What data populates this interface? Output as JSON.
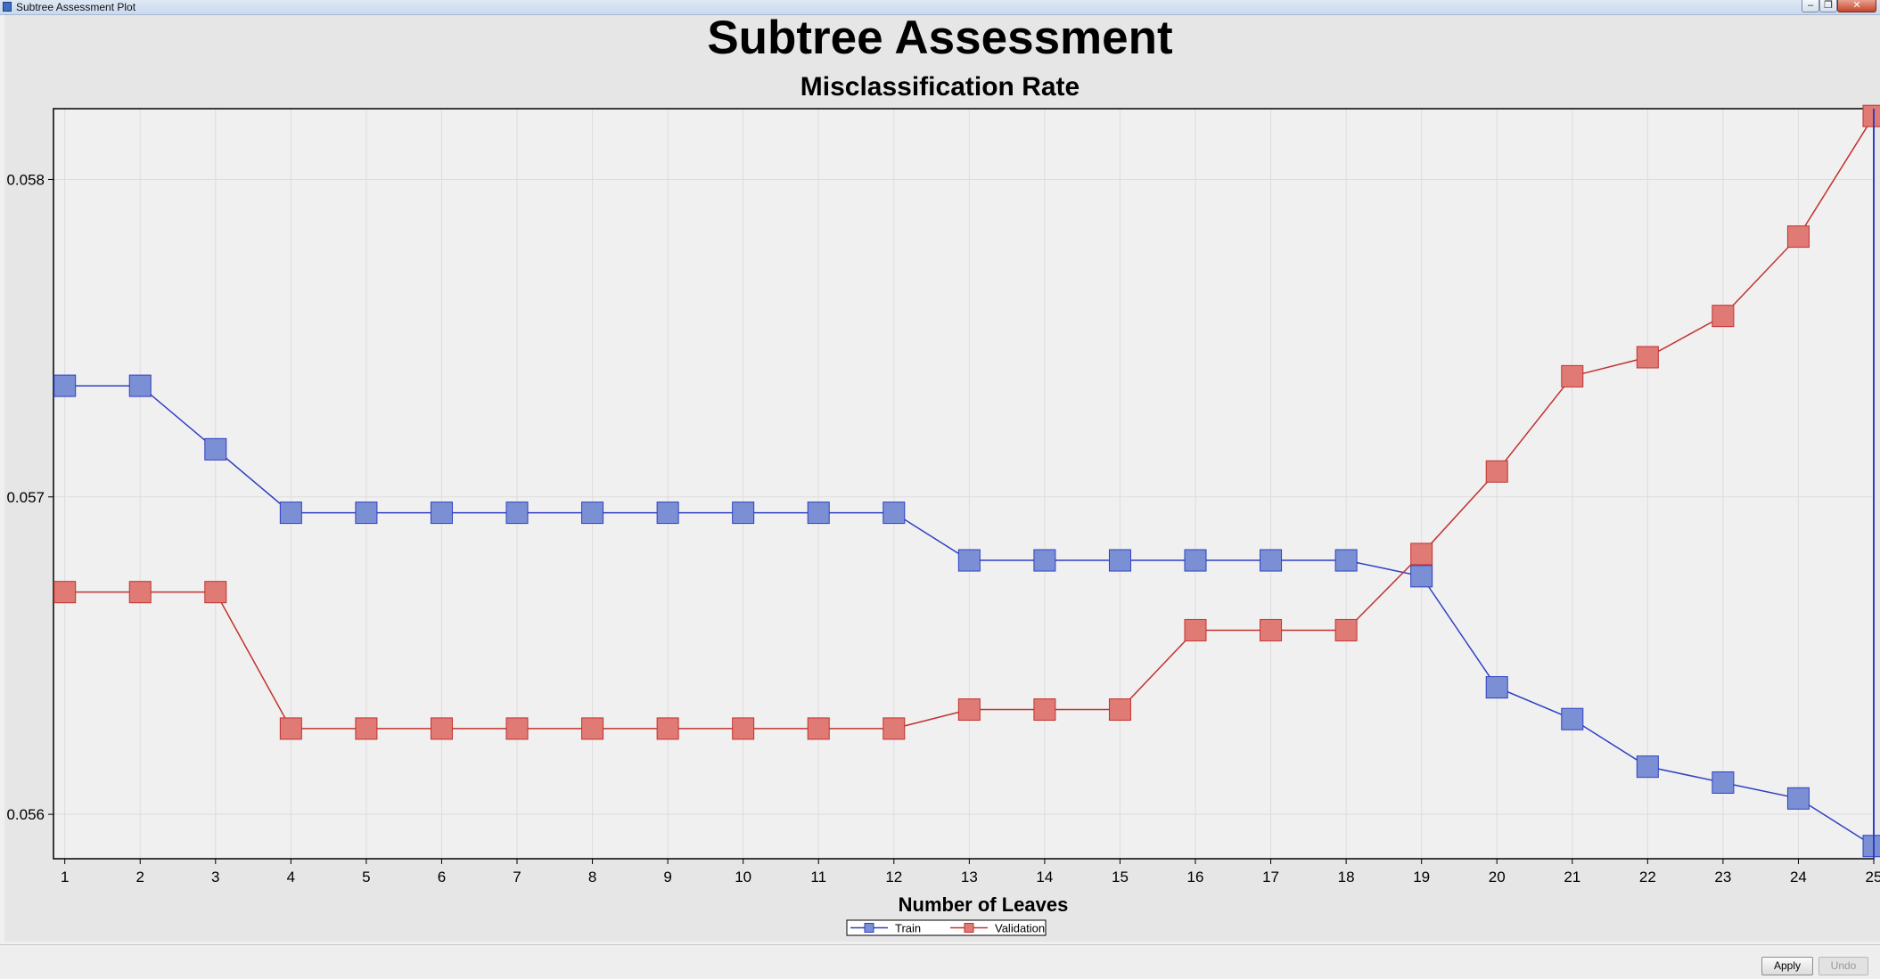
{
  "window": {
    "title": "Subtree Assessment Plot"
  },
  "buttons": {
    "apply": "Apply",
    "undo": "Undo"
  },
  "colors": {
    "train_fill": "#7b90d4",
    "train_line": "#2f3fc2",
    "validation_fill": "#e07a74",
    "validation_line": "#c2322e",
    "plot_bg": "#f0f0f0",
    "grid": "#dddddd"
  },
  "chart_data": {
    "type": "line",
    "title": "Subtree Assessment",
    "subtitle": "Misclassification Rate",
    "xlabel": "Number of Leaves",
    "ylabel": "",
    "x": [
      1,
      2,
      3,
      4,
      5,
      6,
      7,
      8,
      9,
      10,
      11,
      12,
      13,
      14,
      15,
      16,
      17,
      18,
      19,
      20,
      21,
      22,
      23,
      24,
      25
    ],
    "xlim": [
      0.85,
      25
    ],
    "ylim": [
      0.05586,
      0.058223
    ],
    "yticks": [
      0.056,
      0.057,
      0.058
    ],
    "ytick_labels": [
      "0.056",
      "0.057",
      "0.058"
    ],
    "grid": true,
    "legend_position": "bottom-center",
    "reference_line_x": 25,
    "series": [
      {
        "name": "Train",
        "values": [
          0.05735,
          0.05735,
          0.05715,
          0.05695,
          0.05695,
          0.05695,
          0.05695,
          0.05695,
          0.05695,
          0.05695,
          0.05695,
          0.05695,
          0.0568,
          0.0568,
          0.0568,
          0.0568,
          0.0568,
          0.0568,
          0.05675,
          0.0564,
          0.0563,
          0.05615,
          0.0561,
          0.05605,
          0.0559
        ]
      },
      {
        "name": "Validation",
        "values": [
          0.0567,
          0.0567,
          0.0567,
          0.05627,
          0.05627,
          0.05627,
          0.05627,
          0.05627,
          0.05627,
          0.05627,
          0.05627,
          0.05627,
          0.05633,
          0.05633,
          0.05633,
          0.05658,
          0.05658,
          0.05658,
          0.05682,
          0.05708,
          0.05738,
          0.05744,
          0.05757,
          0.05782,
          0.0582
        ]
      }
    ]
  }
}
